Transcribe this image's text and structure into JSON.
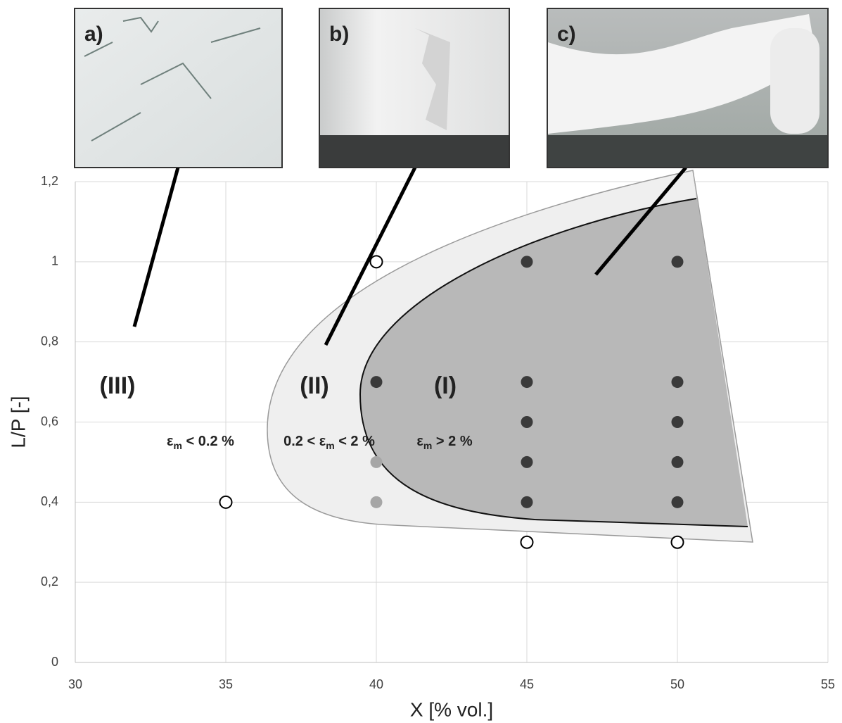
{
  "chart_data": {
    "type": "scatter",
    "xlabel": "X [% vol.]",
    "ylabel": "L/P [-]",
    "xlim": [
      30,
      55
    ],
    "xticks": [
      30,
      35,
      40,
      45,
      50,
      55
    ],
    "ylim": [
      0,
      1.2
    ],
    "yticks": [
      0,
      {
        "value": 0.2,
        "label": "0,2"
      },
      {
        "value": 0.4,
        "label": "0,4"
      },
      {
        "value": 0.6,
        "label": "0,6"
      },
      {
        "value": 0.8,
        "label": "0,8"
      },
      1,
      {
        "value": 1.2,
        "label": "1,2"
      }
    ],
    "grid": true,
    "series": [
      {
        "color": "#000000",
        "filled": false,
        "x": [
          35,
          40,
          45,
          50
        ],
        "values": [
          0.4,
          1,
          0.3,
          0.3
        ]
      },
      {
        "color": "#a6a6a6",
        "filled": true,
        "x": [
          40,
          40
        ],
        "values": [
          0.5,
          0.4
        ]
      },
      {
        "color": "#3a3a3a",
        "filled": true,
        "x": [
          40,
          45,
          45,
          45,
          45,
          45,
          50,
          50,
          50,
          50,
          50
        ],
        "values": [
          0.7,
          1,
          0.7,
          0.6,
          0.5,
          0.4,
          1,
          0.7,
          0.6,
          0.5,
          0.4
        ]
      }
    ],
    "regions": [
      "(III)",
      "(II)",
      "(I)"
    ],
    "strain_labels": [
      {
        "prefix": "ε",
        "sub": "m",
        "suffix": " < 0.2 %"
      },
      {
        "prefix": "0.2 < ε",
        "sub": "m",
        "suffix": " < 2 %"
      },
      {
        "prefix": "ε",
        "sub": "m",
        "suffix": " > 2 %"
      }
    ],
    "insets": [
      {
        "label": "a)"
      },
      {
        "label": "b)"
      },
      {
        "label": "c)"
      }
    ]
  }
}
